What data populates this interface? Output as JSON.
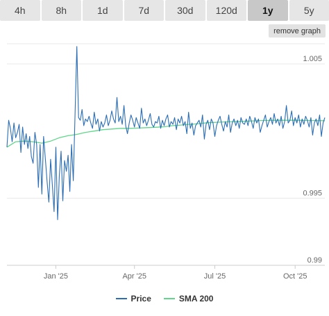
{
  "tabs": [
    {
      "label": "4h",
      "active": false
    },
    {
      "label": "8h",
      "active": false
    },
    {
      "label": "1d",
      "active": false
    },
    {
      "label": "7d",
      "active": false
    },
    {
      "label": "30d",
      "active": false
    },
    {
      "label": "120d",
      "active": false
    },
    {
      "label": "1y",
      "active": true
    },
    {
      "label": "5y",
      "active": false
    }
  ],
  "remove_graph_label": "remove graph",
  "colors": {
    "price": "#2a6db5",
    "sma": "#5fd68a",
    "grid": "#e8e8e8",
    "axis": "#cccccc",
    "tab_bg": "#e6e6e6",
    "tab_active_bg": "#c8c8c8"
  },
  "chart_data": {
    "type": "line",
    "x_ticks": [
      "Jan '25",
      "Apr '25",
      "Jul '25",
      "Oct '25"
    ],
    "y_ticks": [
      "0.99",
      "0.995",
      "1.005"
    ],
    "y_tick_values": [
      0.99,
      0.995,
      1.005
    ],
    "ylim": [
      0.99,
      1.0065
    ],
    "legend_position": "bottom",
    "grid": true,
    "series": [
      {
        "name": "Price",
        "color": "#2a6db5",
        "x": [
          0,
          2,
          4,
          6,
          8,
          10,
          12,
          14,
          16,
          18,
          20,
          22,
          24,
          26,
          28,
          30,
          32,
          34,
          36,
          38,
          40,
          42,
          44,
          46,
          48,
          50,
          52,
          54,
          56,
          58,
          60,
          62,
          64,
          66,
          68,
          70,
          72,
          74,
          76,
          78,
          80,
          82,
          84,
          86,
          88,
          90,
          92,
          94,
          96,
          98,
          100,
          102,
          104,
          106,
          108,
          110,
          112,
          114,
          116,
          118,
          120,
          122,
          124,
          126,
          128,
          130,
          132,
          134,
          136,
          138,
          140,
          142,
          144,
          146,
          148,
          150,
          152,
          154,
          156,
          158,
          160,
          162,
          164,
          166,
          168,
          170,
          172,
          174,
          176,
          178,
          180,
          182,
          184,
          186,
          188,
          190,
          192,
          194,
          196,
          198,
          200,
          202,
          204,
          206,
          208,
          210,
          212,
          214,
          216,
          218,
          220,
          222,
          224,
          226,
          228,
          230,
          232,
          234,
          236,
          238,
          240,
          242,
          244,
          246,
          248,
          250,
          252,
          254,
          256,
          258,
          260,
          262,
          264,
          266,
          268,
          270,
          272,
          274,
          276,
          278,
          280,
          282,
          284,
          286,
          288,
          290,
          292,
          294,
          296,
          298,
          300,
          302,
          304,
          306,
          308,
          310,
          312,
          314,
          316,
          318,
          320,
          322,
          324,
          326,
          328,
          330,
          332,
          334,
          336,
          338,
          340,
          342,
          344,
          346,
          348,
          350,
          352,
          354,
          356,
          358,
          360,
          362,
          364
        ],
        "y": [
          0.9988,
          1.0008,
          1.0002,
          0.9992,
          1.0006,
          0.9995,
          0.9999,
          1.0005,
          0.9984,
          1.0003,
          0.999,
          0.9998,
          0.9987,
          0.9996,
          0.9981,
          0.9976,
          0.9999,
          0.999,
          0.9958,
          0.999,
          0.9953,
          0.9996,
          0.9979,
          0.9962,
          0.9947,
          0.9979,
          0.996,
          0.994,
          0.9988,
          0.9934,
          0.9967,
          0.9985,
          0.9948,
          0.9978,
          0.997,
          0.9982,
          0.9955,
          0.999,
          0.9963,
          1.0012,
          1.0063,
          1.001,
          1.0008,
          1.0016,
          1.0004,
          1.0009,
          1.0007,
          1.0011,
          1.0006,
          1.0002,
          1.0014,
          1.0005,
          1.0009,
          1.0,
          1.0007,
          1.0003,
          1.0006,
          1.0012,
          1.0004,
          1.0008,
          1.0015,
          1.0009,
          1.0006,
          1.0025,
          1.0007,
          1.0011,
          1.0005,
          1.0019,
          1.0004,
          0.9998,
          1.0006,
          1.0012,
          1.0008,
          1.0003,
          1.001,
          1.0006,
          1.0002,
          1.0017,
          1.0006,
          1.0009,
          1.0004,
          1.0008,
          1.0013,
          1.0005,
          1.0003,
          1.0007,
          1.0006,
          1.0011,
          1.0002,
          1.0008,
          1.0004,
          1.0009,
          1.0012,
          1.0003,
          1.0007,
          1.0005,
          1.001,
          1.0001,
          1.0009,
          1.0006,
          1.0011,
          1.0004,
          1.0007,
          0.9998,
          1.0014,
          1.0002,
          1.0006,
          0.9997,
          1.0004,
          1.0006,
          1.0008,
          1.0003,
          1.0012,
          0.9994,
          1.0005,
          1.0008,
          1.0001,
          1.0009,
          1.0006,
          0.9996,
          1.0004,
          1.0008,
          1.0011,
          1.0005,
          1.0,
          1.0007,
          1.0003,
          1.0012,
          0.9999,
          1.0006,
          1.0009,
          1.0004,
          1.0008,
          1.0002,
          1.001,
          1.0006,
          1.0005,
          1.0009,
          1.0004,
          1.0011,
          1.0007,
          1.0002,
          1.001,
          1.0006,
          1.0009,
          0.9999,
          1.0004,
          1.0008,
          1.0012,
          1.0003,
          1.0007,
          1.001,
          1.0005,
          1.0013,
          1.0006,
          1.0009,
          1.0004,
          1.0011,
          1.0002,
          1.0007,
          1.0019,
          1.0006,
          1.0008,
          1.0015,
          1.0004,
          1.001,
          1.0006,
          1.0012,
          1.0003,
          1.0009,
          1.0005,
          1.0011,
          1.0008,
          1.0003,
          1.001,
          0.9997,
          1.0006,
          1.0009,
          1.0004,
          1.0012,
          0.9996,
          1.0006,
          1.001
        ]
      },
      {
        "name": "SMA 200",
        "color": "#5fd68a",
        "x": [
          0,
          10,
          20,
          30,
          40,
          50,
          60,
          70,
          80,
          90,
          100,
          110,
          120,
          130,
          140,
          150,
          160,
          170,
          180,
          190,
          200,
          210,
          220,
          230,
          240,
          250,
          260,
          270,
          280,
          290,
          300,
          310,
          320,
          330,
          340,
          350,
          364
        ],
        "y": [
          0.9988,
          0.9992,
          0.99925,
          0.9992,
          0.9991,
          0.99925,
          0.9995,
          0.99965,
          0.99975,
          0.9999,
          1.0,
          1.0001,
          1.00015,
          1.0002,
          1.0002,
          1.00022,
          1.00025,
          1.00028,
          1.00032,
          1.0004,
          1.00045,
          1.0005,
          1.00055,
          1.00062,
          1.00065,
          1.00068,
          1.0007,
          1.00072,
          1.00075,
          1.00078,
          1.00079,
          1.0008,
          1.0008,
          1.0008,
          1.00079,
          1.00078,
          1.00077
        ]
      }
    ]
  }
}
